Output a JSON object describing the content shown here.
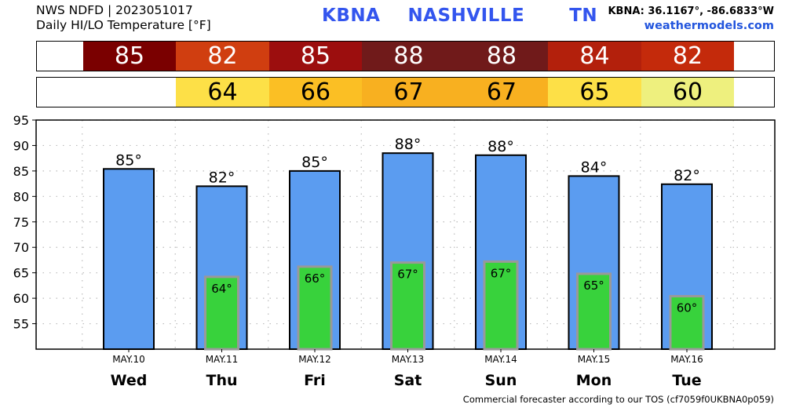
{
  "header": {
    "line1": "NWS NDFD | 2023051017",
    "line2": "Daily HI/LO Temperature [°F]",
    "station": "KBNA",
    "city": "NASHVILLE",
    "state": "TN",
    "coords": "KBNA: 36.1167°, -86.6833°W",
    "site": "weathermodels.com"
  },
  "footer": "Commercial forecaster according to our TOS (cf7059f0UKBNA0p059)",
  "colors": {
    "hi_bar": "#5b9cf0",
    "lo_bar": "#38d23c",
    "lo_bar_border": "#999999",
    "hi_cells": [
      "#7a0000",
      "#d03e10",
      "#9c0e0e",
      "#701a1a",
      "#701a1a",
      "#b3200c",
      "#c42a0b"
    ],
    "lo_cells": [
      "",
      "#fde047",
      "#fbbf24",
      "#f8b020",
      "#f8b020",
      "#fde047",
      "#eef07e"
    ]
  },
  "chart_data": {
    "type": "bar",
    "categories": [
      "Wed",
      "Thu",
      "Fri",
      "Sat",
      "Sun",
      "Mon",
      "Tue"
    ],
    "dates": [
      "MAY.10",
      "MAY.11",
      "MAY.12",
      "MAY.13",
      "MAY.14",
      "MAY.15",
      "MAY.16"
    ],
    "series": [
      {
        "values": [
          85.4,
          82.0,
          85.0,
          88.5,
          88.1,
          84.0,
          82.4
        ],
        "labels": [
          "85°",
          "82°",
          "85°",
          "88°",
          "88°",
          "84°",
          "82°"
        ],
        "strip": [
          "85",
          "82",
          "85",
          "88",
          "88",
          "84",
          "82"
        ]
      },
      {
        "values": [
          null,
          64.2,
          66.2,
          67.0,
          67.2,
          64.8,
          60.4
        ],
        "labels": [
          "",
          "64°",
          "66°",
          "67°",
          "67°",
          "65°",
          "60°"
        ],
        "strip": [
          "",
          "64",
          "66",
          "67",
          "67",
          "65",
          "60"
        ]
      }
    ],
    "ylim": [
      50,
      95
    ],
    "yticks": [
      "95",
      "90",
      "85",
      "80",
      "75",
      "70",
      "65",
      "60",
      "55"
    ],
    "grid": true
  }
}
